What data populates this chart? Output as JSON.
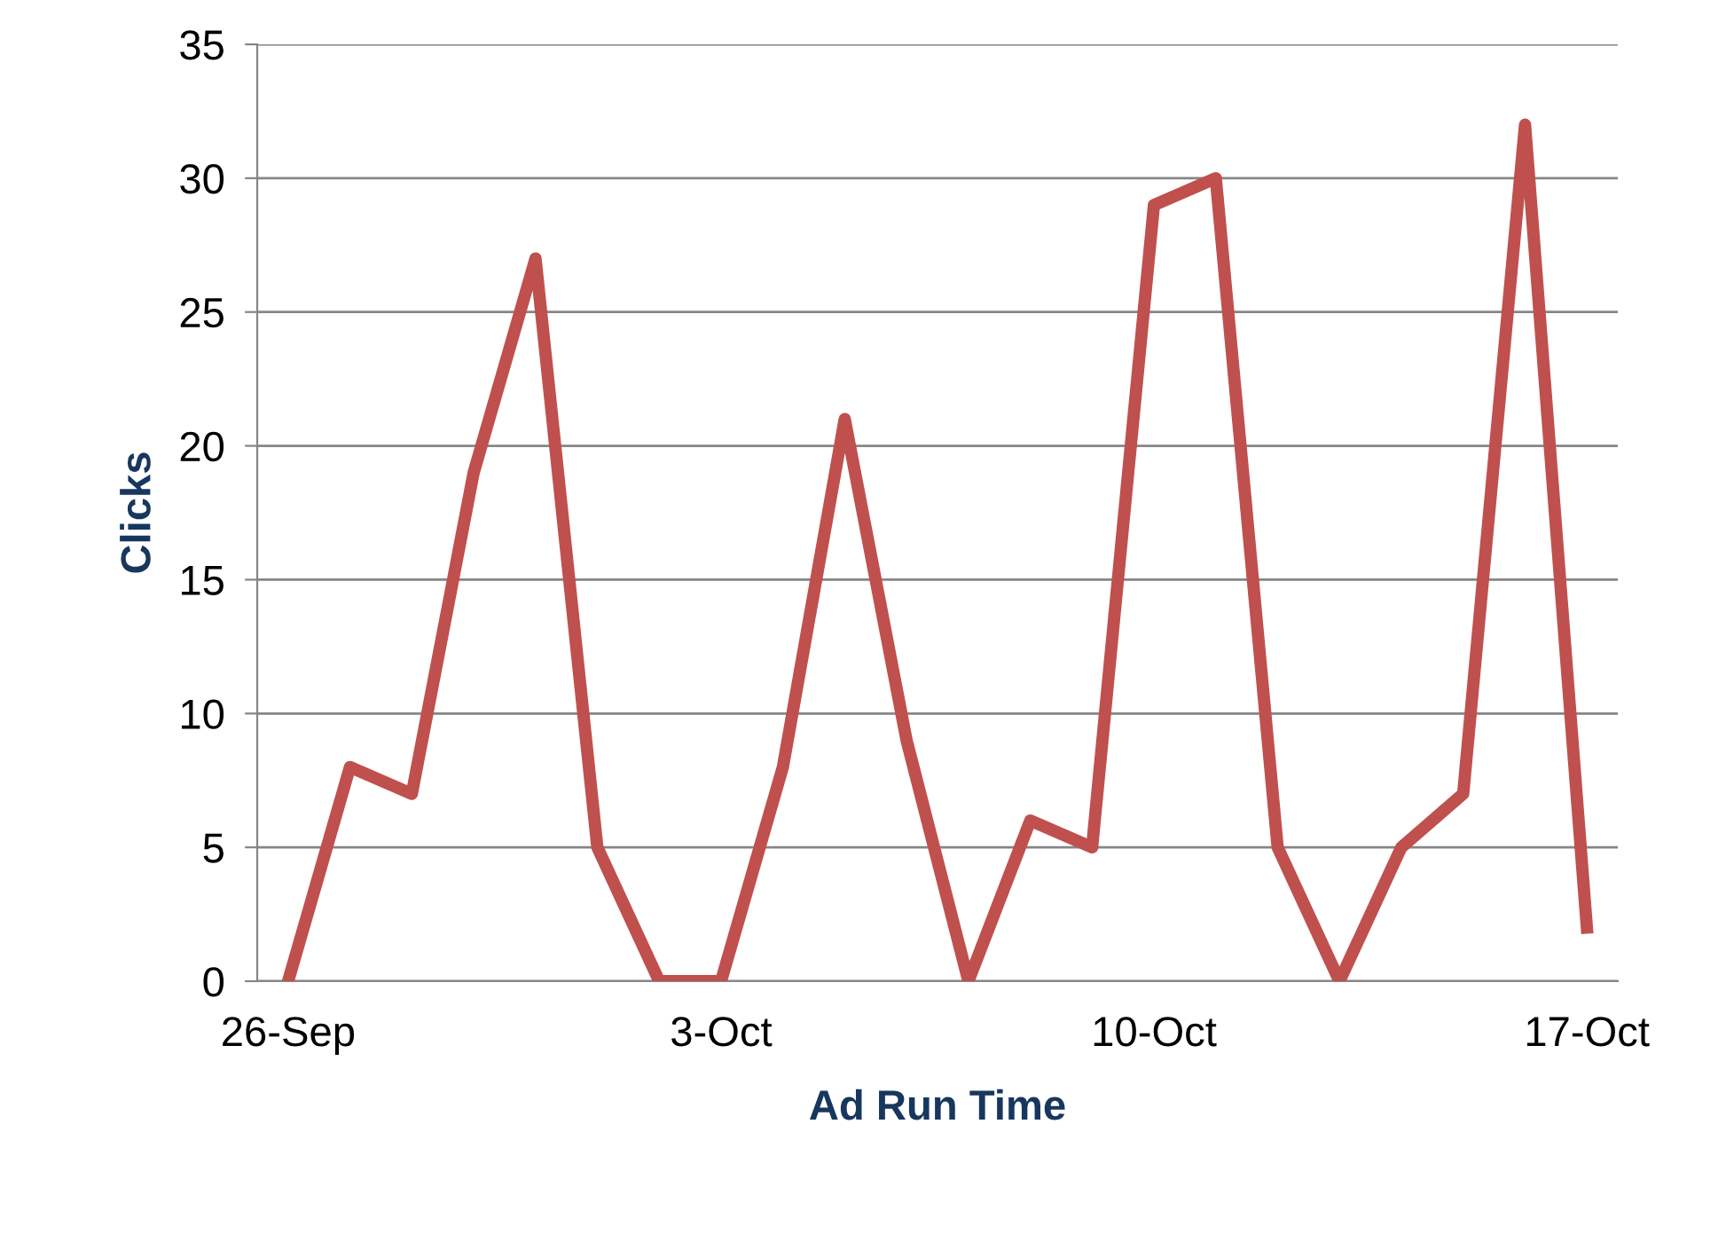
{
  "chart_data": {
    "type": "line",
    "xlabel": "Ad Run Time",
    "ylabel": "Clicks",
    "categories": [
      "26-Sep",
      null,
      null,
      null,
      null,
      null,
      null,
      "3-Oct",
      null,
      null,
      null,
      null,
      null,
      null,
      "10-Oct",
      null,
      null,
      null,
      null,
      null,
      null,
      "17-Oct"
    ],
    "series": [
      {
        "color": "#c0504d",
        "values": [
          0,
          8,
          7,
          19,
          27,
          5,
          0,
          0,
          8,
          21,
          9,
          0,
          6,
          5,
          29,
          30,
          5,
          0,
          5,
          7,
          32,
          2
        ]
      }
    ],
    "ylim": [
      0,
      35
    ],
    "yticks": [
      0,
      5,
      10,
      15,
      20,
      25,
      30,
      35
    ],
    "grid": "y",
    "marker": "none",
    "line_style": "solid",
    "legend": false
  }
}
